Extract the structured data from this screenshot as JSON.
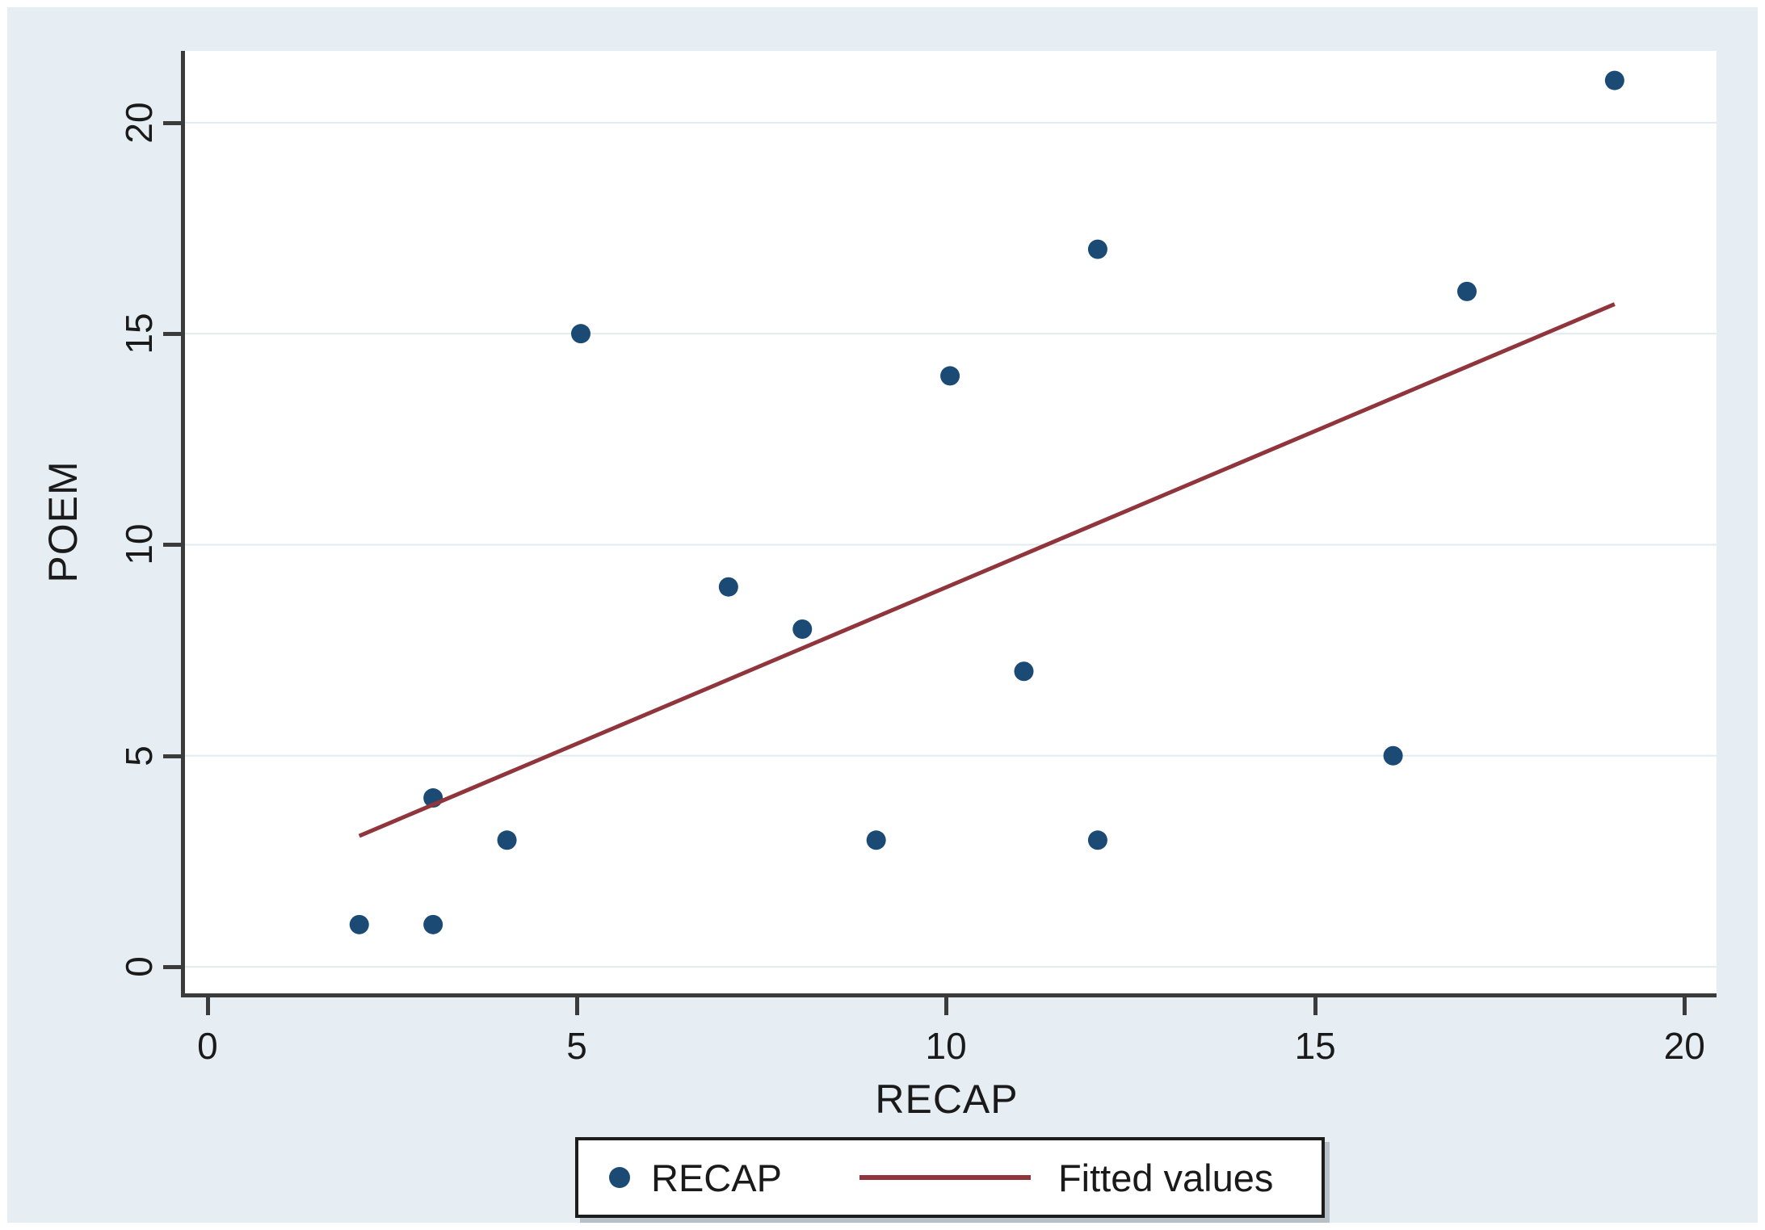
{
  "chart_data": {
    "type": "scatter",
    "xlabel": "RECAP",
    "ylabel": "POEM",
    "x_axis": {
      "ticks": [
        0,
        5,
        10,
        15,
        20
      ],
      "range": [
        -0.36,
        20.38
      ]
    },
    "y_axis": {
      "ticks": [
        0,
        5,
        10,
        15,
        20
      ],
      "range": [
        -0.63,
        21.7
      ]
    },
    "grid": "horizontal-only",
    "series": [
      {
        "name": "RECAP",
        "type": "scatter",
        "color": "#1b4a74",
        "marker": "circle",
        "points": [
          [
            2,
            1
          ],
          [
            3,
            1
          ],
          [
            3,
            4
          ],
          [
            4,
            3
          ],
          [
            5,
            15
          ],
          [
            7,
            9
          ],
          [
            8,
            8
          ],
          [
            9,
            3
          ],
          [
            10,
            14
          ],
          [
            11,
            7
          ],
          [
            12,
            17
          ],
          [
            12,
            3
          ],
          [
            16,
            5
          ],
          [
            17,
            16
          ],
          [
            19,
            21
          ]
        ]
      },
      {
        "name": "Fitted values",
        "type": "line",
        "color": "#90353b",
        "points": [
          [
            2,
            3.1
          ],
          [
            19,
            15.7
          ]
        ]
      }
    ],
    "legend": {
      "position": "bottom-center",
      "items": [
        {
          "label": "RECAP",
          "marker": "dot"
        },
        {
          "label": "Fitted values",
          "marker": "line"
        }
      ]
    }
  },
  "colors": {
    "canvas_background": "#e6eef3",
    "plot_background": "#ffffff",
    "axis": "#3b3b3b",
    "gridline": "#e3ebf0",
    "text": "#1a1a1a",
    "point": "#1b4a74",
    "fitted_line": "#90353b"
  }
}
